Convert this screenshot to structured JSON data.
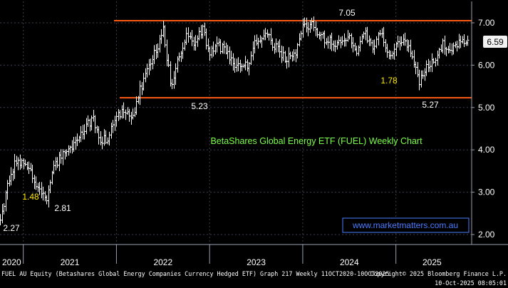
{
  "chart_data": {
    "type": "ohlc",
    "title": "BetaShares Global Energy ETF (FUEL) Weekly Chart",
    "watermark": "www.marketmatters.com.au",
    "footer_left": "FUEL AU Equity (Betashares Global Energy Companies Currency Hedged ETF) Graph 217 Weekly 11OCT2020-10OCT2025",
    "footer_right_top": "Copyright© 2025 Bloomberg Finance L.P.",
    "footer_right_bottom": "10-Oct-2025 08:05:01",
    "x_labels": [
      "2020",
      "2021",
      "2022",
      "2023",
      "2024",
      "2025"
    ],
    "y_ticks": [
      "2.00",
      "3.00",
      "4.00",
      "5.00",
      "6.00",
      "7.00"
    ],
    "ylim": [
      1.75,
      7.45
    ],
    "last_price": "6.59",
    "last_value": 6.59,
    "resistance": 7.05,
    "support": 5.23,
    "annotations": [
      {
        "text": "7.05",
        "color": "white"
      },
      {
        "text": "5.23",
        "color": "white"
      },
      {
        "text": "5.27",
        "color": "white"
      },
      {
        "text": "1.78",
        "color": "yellow"
      },
      {
        "text": "1.48",
        "color": "yellow"
      },
      {
        "text": "2.81",
        "color": "white"
      },
      {
        "text": "2.27",
        "color": "white"
      }
    ],
    "colors": {
      "background": "#000000",
      "grid": "#3a3f4f",
      "bars": "#ffffff",
      "level_line": "#ff5a14",
      "title": "#7cff4a",
      "highlight": "#ffeb00",
      "watermark": "#4a7bff"
    },
    "series": [
      {
        "x": [
          "2020-10",
          "2020-11",
          "2020-12",
          "2021-01",
          "2021-02",
          "2021-03",
          "2021-04",
          "2021-05",
          "2021-06",
          "2021-07",
          "2021-08",
          "2021-09",
          "2021-10",
          "2021-11",
          "2021-12",
          "2022-01",
          "2022-02",
          "2022-03",
          "2022-04",
          "2022-05",
          "2022-06",
          "2022-07",
          "2022-08",
          "2022-09",
          "2022-10",
          "2022-11",
          "2022-12",
          "2023-01",
          "2023-02",
          "2023-03",
          "2023-04",
          "2023-05",
          "2023-06",
          "2023-07",
          "2023-08",
          "2023-09",
          "2023-10",
          "2023-11",
          "2023-12",
          "2024-01",
          "2024-02",
          "2024-03",
          "2024-04",
          "2024-05",
          "2024-06",
          "2024-07",
          "2024-08",
          "2024-09",
          "2024-10",
          "2024-11",
          "2024-12",
          "2025-01",
          "2025-02",
          "2025-03",
          "2025-04",
          "2025-05",
          "2025-06",
          "2025-07",
          "2025-08",
          "2025-09",
          "2025-10"
        ],
        "values": [
          2.3,
          3.3,
          3.75,
          3.7,
          3.5,
          3.05,
          2.85,
          3.6,
          3.9,
          4.05,
          4.25,
          4.55,
          4.75,
          4.2,
          4.3,
          4.8,
          4.9,
          4.7,
          5.4,
          6.0,
          6.3,
          6.8,
          5.5,
          6.2,
          6.75,
          6.5,
          6.85,
          6.3,
          6.5,
          6.3,
          6.1,
          5.9,
          6.05,
          6.6,
          6.75,
          6.55,
          6.3,
          6.15,
          6.2,
          6.85,
          7.0,
          6.7,
          6.6,
          6.55,
          6.5,
          6.65,
          6.3,
          6.75,
          6.45,
          6.75,
          6.2,
          6.45,
          6.6,
          6.25,
          5.6,
          6.0,
          6.2,
          6.5,
          6.4,
          6.5,
          6.59
        ]
      }
    ]
  }
}
